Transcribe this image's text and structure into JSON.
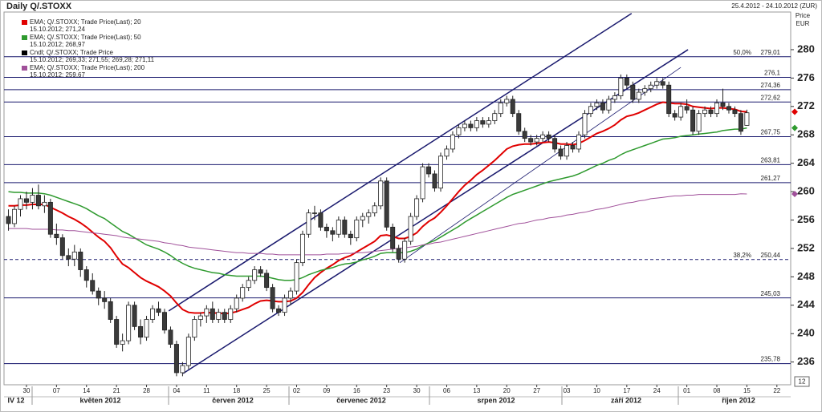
{
  "chart_data": {
    "type": "candlestick",
    "title": "Daily Q/.STOXX",
    "date_range": "25.4.2012 - 24.10.2012 (ZUR)",
    "y_label": [
      "Price",
      "EUR"
    ],
    "corner_label": "12",
    "ylim": [
      232.8,
      285.3
    ],
    "yticks": [
      236,
      240,
      244,
      248,
      252,
      256,
      260,
      264,
      268,
      272,
      276,
      280
    ],
    "xlim": [
      -0.74,
      130.3
    ],
    "xticks": [
      {
        "value": 3,
        "label": "30"
      },
      {
        "value": 8,
        "label": "07"
      },
      {
        "value": 13,
        "label": "14"
      },
      {
        "value": 18,
        "label": "21"
      },
      {
        "value": 23,
        "label": "28"
      },
      {
        "value": 28,
        "label": "04"
      },
      {
        "value": 33,
        "label": "11"
      },
      {
        "value": 38,
        "label": "18"
      },
      {
        "value": 43,
        "label": "25"
      },
      {
        "value": 48,
        "label": "02"
      },
      {
        "value": 53,
        "label": "09"
      },
      {
        "value": 58,
        "label": "16"
      },
      {
        "value": 63,
        "label": "23"
      },
      {
        "value": 68,
        "label": "30"
      },
      {
        "value": 73,
        "label": "06"
      },
      {
        "value": 78,
        "label": "13"
      },
      {
        "value": 83,
        "label": "20"
      },
      {
        "value": 88,
        "label": "27"
      },
      {
        "value": 93,
        "label": "03"
      },
      {
        "value": 98,
        "label": "10"
      },
      {
        "value": 103,
        "label": "17"
      },
      {
        "value": 108,
        "label": "24"
      },
      {
        "value": 113,
        "label": "01"
      },
      {
        "value": 118,
        "label": "08"
      },
      {
        "value": 123,
        "label": "15"
      },
      {
        "value": 128,
        "label": "22"
      }
    ],
    "months": [
      "IV 12",
      "květen 2012",
      "červen 2012",
      "červenec 2012",
      "srpen 2012",
      "září 2012",
      "říjen 2012"
    ],
    "legend": [
      {
        "name": "EMA; Q/.STOXX; Trade Price(Last);  20",
        "detail": "15.10.2012; 271,24",
        "color": "#e00000"
      },
      {
        "name": "EMA; Q/.STOXX; Trade Price(Last);  50",
        "detail": "15.10.2012; 268,97",
        "color": "#2e9a2e"
      },
      {
        "name": "Cndl; Q/.STOXX; Trade Price",
        "detail": "15.10.2012; 269,33; 271,55; 269,28; 271,11",
        "color": "#000000"
      },
      {
        "name": "EMA; Q/.STOXX; Trade Price(Last);  200",
        "detail": "15.10.2012; 259,67",
        "color": "#a0509a"
      }
    ],
    "up_color": "#ffffff",
    "down_color": "#3a3a3a",
    "ohlc": [
      [
        256.5,
        257.5,
        254.5,
        255.5
      ],
      [
        255.5,
        258,
        255,
        257.5
      ],
      [
        257.5,
        259.5,
        256.5,
        259
      ],
      [
        259,
        260,
        257.5,
        258.5
      ],
      [
        258.5,
        260.5,
        257.5,
        259.5
      ],
      [
        259.5,
        261,
        257.5,
        258
      ],
      [
        258,
        259.5,
        257,
        258.5
      ],
      [
        258.5,
        259,
        253.5,
        254
      ],
      [
        254,
        255.5,
        252.5,
        253.5
      ],
      [
        253.5,
        254,
        250.5,
        251
      ],
      [
        251,
        252,
        249.5,
        250.5
      ],
      [
        250.5,
        252.5,
        249.5,
        251.5
      ],
      [
        251.5,
        252,
        248,
        249
      ],
      [
        249,
        249.5,
        246.5,
        247.5
      ],
      [
        247.5,
        248.5,
        245.5,
        246
      ],
      [
        246,
        246.5,
        244,
        245
      ],
      [
        245,
        246,
        243.5,
        244.5
      ],
      [
        244.5,
        245,
        241.5,
        242
      ],
      [
        242,
        242.5,
        238,
        238.5
      ],
      [
        238.5,
        240,
        237.5,
        239
      ],
      [
        239,
        244.5,
        238.5,
        244
      ],
      [
        244,
        244.5,
        240.5,
        241
      ],
      [
        241,
        242,
        238.5,
        239.5
      ],
      [
        239.5,
        242.5,
        239,
        242
      ],
      [
        242,
        244,
        241.5,
        243.5
      ],
      [
        243.5,
        244.5,
        242.5,
        243
      ],
      [
        243,
        243.5,
        240,
        240.5
      ],
      [
        240.5,
        241,
        238,
        238.5
      ],
      [
        238.5,
        239,
        234,
        234.5
      ],
      [
        234.5,
        236,
        234,
        235.5
      ],
      [
        235.5,
        240,
        235,
        239.5
      ],
      [
        239.5,
        242.5,
        239,
        242
      ],
      [
        242,
        243,
        241,
        242.5
      ],
      [
        242.5,
        244,
        241.5,
        243.5
      ],
      [
        243.5,
        244.5,
        241.5,
        242
      ],
      [
        242,
        243.5,
        241.5,
        243
      ],
      [
        243,
        243.5,
        241.5,
        242
      ],
      [
        242,
        244,
        241.5,
        243.5
      ],
      [
        243.5,
        245.5,
        243,
        245
      ],
      [
        245,
        247,
        244.5,
        246.5
      ],
      [
        246.5,
        248,
        246,
        247.5
      ],
      [
        247.5,
        249.5,
        247,
        249
      ],
      [
        249,
        249.5,
        248,
        248.5
      ],
      [
        248.5,
        249,
        246,
        246.5
      ],
      [
        246.5,
        247,
        243,
        243.5
      ],
      [
        243.5,
        244,
        242.5,
        243
      ],
      [
        243,
        245.5,
        242.5,
        245
      ],
      [
        245,
        246.5,
        244,
        246
      ],
      [
        246,
        250.5,
        245.5,
        250
      ],
      [
        250,
        254.5,
        249.5,
        254
      ],
      [
        254,
        257.5,
        253.5,
        257
      ],
      [
        257,
        258,
        256,
        257
      ],
      [
        257,
        257.5,
        254.5,
        255
      ],
      [
        255,
        255.5,
        253.5,
        254.5
      ],
      [
        254.5,
        255,
        253,
        254
      ],
      [
        254,
        256.5,
        253.5,
        256
      ],
      [
        256,
        256.5,
        253.5,
        254
      ],
      [
        254,
        254.5,
        252.5,
        253.5
      ],
      [
        253.5,
        256.5,
        253,
        256
      ],
      [
        256,
        257,
        255,
        256.5
      ],
      [
        256.5,
        257.5,
        255.5,
        257
      ],
      [
        257,
        258.5,
        256.5,
        258
      ],
      [
        258,
        262,
        257.5,
        261.5
      ],
      [
        261.5,
        262,
        254.5,
        255
      ],
      [
        255,
        255.5,
        251.5,
        252
      ],
      [
        252,
        252.5,
        250,
        250.5
      ],
      [
        250.5,
        253.5,
        250,
        253
      ],
      [
        253,
        257,
        252.5,
        256.5
      ],
      [
        256.5,
        259.5,
        256,
        259
      ],
      [
        259,
        264,
        258.5,
        263.5
      ],
      [
        263.5,
        264,
        262,
        262.5
      ],
      [
        262.5,
        263,
        260,
        260.5
      ],
      [
        260.5,
        265.5,
        260,
        265
      ],
      [
        265,
        266.5,
        264.5,
        266
      ],
      [
        266,
        268.5,
        265.5,
        268
      ],
      [
        268,
        269.5,
        267.5,
        269
      ],
      [
        269,
        270,
        268.5,
        269.5
      ],
      [
        269.5,
        270,
        268.5,
        269
      ],
      [
        269,
        270.5,
        268.5,
        270
      ],
      [
        270,
        270.5,
        269,
        269.5
      ],
      [
        269.5,
        270.5,
        269,
        270
      ],
      [
        270,
        271.5,
        269.5,
        271
      ],
      [
        271,
        273,
        270.5,
        272.5
      ],
      [
        272.5,
        273.5,
        272,
        273
      ],
      [
        273,
        273.5,
        270.5,
        271
      ],
      [
        271,
        271.5,
        268,
        268.5
      ],
      [
        268.5,
        269,
        267,
        267.5
      ],
      [
        267.5,
        268,
        266.5,
        267
      ],
      [
        267,
        268,
        266.5,
        267.5
      ],
      [
        267.5,
        268.5,
        267,
        268
      ],
      [
        268,
        268.5,
        267,
        267.5
      ],
      [
        267.5,
        268,
        265.5,
        266
      ],
      [
        266,
        266.5,
        264.5,
        265
      ],
      [
        265,
        267,
        264.5,
        266.5
      ],
      [
        266.5,
        267,
        265.5,
        266
      ],
      [
        266,
        268.5,
        265.5,
        268
      ],
      [
        268,
        271.5,
        267.5,
        271
      ],
      [
        271,
        272.5,
        270.5,
        272
      ],
      [
        272,
        273,
        271.5,
        272.5
      ],
      [
        272.5,
        273,
        271,
        271.5
      ],
      [
        271.5,
        273.5,
        271,
        273
      ],
      [
        273,
        274,
        272.5,
        273.5
      ],
      [
        273.5,
        276.5,
        273,
        276
      ],
      [
        276,
        276.5,
        274.5,
        275
      ],
      [
        275,
        275.5,
        272.5,
        273
      ],
      [
        273,
        274.5,
        272.5,
        274
      ],
      [
        274,
        275,
        273.5,
        274.5
      ],
      [
        274.5,
        275.5,
        274,
        275
      ],
      [
        275,
        276,
        274.5,
        275.5
      ],
      [
        275.5,
        276,
        274.5,
        275
      ],
      [
        275,
        275.5,
        270.5,
        271
      ],
      [
        271,
        271.5,
        270,
        270.5
      ],
      [
        270.5,
        272.5,
        270,
        272
      ],
      [
        272,
        273,
        271,
        271.5
      ],
      [
        271.5,
        272,
        268,
        268.5
      ],
      [
        268.5,
        271.5,
        268,
        271
      ],
      [
        271,
        272,
        270.5,
        271.5
      ],
      [
        271.5,
        272,
        270.5,
        271
      ],
      [
        271,
        273,
        270.5,
        272.5
      ],
      [
        272.5,
        274.5,
        271.5,
        272
      ],
      [
        272,
        272.5,
        271,
        271.5
      ],
      [
        271.5,
        272,
        270.5,
        271
      ],
      [
        271,
        271.5,
        268,
        268.5
      ],
      [
        269.33,
        271.55,
        269.28,
        271.11
      ]
    ],
    "series": [
      {
        "color": "#e00000",
        "width": 2,
        "values": [
          258,
          258,
          258.1,
          258.1,
          258.2,
          258.2,
          258.2,
          257.8,
          257.4,
          257,
          256.5,
          256.1,
          255.6,
          255,
          254.3,
          253.6,
          253,
          252.1,
          250.9,
          249.8,
          249.3,
          248.6,
          247.9,
          247.4,
          247,
          246.6,
          246,
          245.3,
          244.3,
          243.4,
          243,
          242.9,
          242.9,
          243,
          242.9,
          242.9,
          242.8,
          242.9,
          243.1,
          243.4,
          243.7,
          244.2,
          244.6,
          244.7,
          244.6,
          244.5,
          244.5,
          244.6,
          245,
          245.8,
          246.9,
          247.9,
          248.6,
          249.2,
          249.7,
          250.3,
          250.7,
          251,
          251.5,
          252,
          252.5,
          253,
          253.8,
          253.9,
          253.7,
          253.4,
          253.4,
          253.7,
          254.2,
          255.1,
          255.8,
          256.3,
          257.1,
          258,
          259,
          260,
          260.9,
          261.6,
          262.4,
          263,
          263.7,
          264.4,
          265.2,
          266,
          266.4,
          266.6,
          266.7,
          266.7,
          266.8,
          266.9,
          267,
          266.9,
          266.7,
          266.7,
          266.6,
          266.8,
          267.2,
          267.7,
          268.2,
          268.5,
          268.9,
          269.4,
          270.1,
          270.6,
          270.8,
          271.1,
          271.5,
          271.9,
          272.3,
          272.6,
          272.5,
          272.4,
          272.4,
          272.3,
          272,
          271.9,
          271.8,
          271.7,
          271.8,
          271.8,
          271.7,
          271.6,
          271.3,
          271.24
        ]
      },
      {
        "color": "#2e9a2e",
        "width": 1.5,
        "values": [
          260,
          259.9,
          259.9,
          259.8,
          259.8,
          259.8,
          259.7,
          259.5,
          259.2,
          258.9,
          258.6,
          258.3,
          258,
          257.6,
          257.1,
          256.6,
          256.2,
          255.6,
          255,
          254.4,
          254,
          253.5,
          253,
          252.5,
          252.2,
          251.9,
          251.5,
          251,
          250.4,
          249.9,
          249.5,
          249.2,
          249,
          248.8,
          248.6,
          248.5,
          248.3,
          248.2,
          248.1,
          248.1,
          248.1,
          248.1,
          248.1,
          248,
          247.8,
          247.6,
          247.5,
          247.5,
          247.6,
          247.9,
          248.3,
          248.6,
          248.9,
          249.1,
          249.3,
          249.6,
          249.8,
          249.9,
          250.1,
          250.4,
          250.6,
          250.9,
          251.3,
          251.4,
          251.4,
          251.4,
          251.4,
          251.6,
          251.9,
          252.4,
          252.8,
          253.1,
          253.6,
          254.1,
          254.6,
          255.1,
          255.7,
          256.2,
          256.7,
          257.2,
          257.7,
          258.2,
          258.7,
          259.2,
          259.6,
          259.9,
          260.2,
          260.5,
          260.8,
          261.1,
          261.4,
          261.6,
          261.8,
          262,
          262.2,
          262.5,
          262.9,
          263.3,
          263.7,
          264,
          264.4,
          264.7,
          265.2,
          265.6,
          265.9,
          266.2,
          266.5,
          266.8,
          267.1,
          267.4,
          267.5,
          267.6,
          267.8,
          267.9,
          268,
          268.1,
          268.2,
          268.3,
          268.4,
          268.6,
          268.7,
          268.8,
          268.8,
          268.97
        ]
      },
      {
        "color": "#a0509a",
        "width": 1,
        "values": [
          254.8,
          254.8,
          254.8,
          254.8,
          254.7,
          254.7,
          254.7,
          254.7,
          254.6,
          254.6,
          254.5,
          254.5,
          254.4,
          254.3,
          254.2,
          254.1,
          254,
          253.9,
          253.8,
          253.6,
          253.5,
          253.4,
          253.3,
          253.2,
          253.1,
          253,
          252.8,
          252.7,
          252.5,
          252.4,
          252.2,
          252.1,
          252,
          251.9,
          251.8,
          251.7,
          251.6,
          251.5,
          251.4,
          251.4,
          251.3,
          251.3,
          251.3,
          251.2,
          251.2,
          251.1,
          251.1,
          251.1,
          251.1,
          251.1,
          251.1,
          251.1,
          251.1,
          251.2,
          251.2,
          251.2,
          251.3,
          251.3,
          251.4,
          251.4,
          251.5,
          251.6,
          251.7,
          251.8,
          251.9,
          252,
          252.1,
          252.2,
          252.3,
          252.5,
          252.6,
          252.8,
          252.9,
          253.1,
          253.3,
          253.5,
          253.7,
          253.9,
          254.1,
          254.3,
          254.5,
          254.7,
          254.9,
          255.1,
          255.3,
          255.5,
          255.6,
          255.8,
          256,
          256.1,
          256.3,
          256.4,
          256.5,
          256.7,
          256.8,
          257,
          257.1,
          257.3,
          257.5,
          257.6,
          257.8,
          258,
          258.2,
          258.4,
          258.5,
          258.7,
          258.8,
          259,
          259.1,
          259.2,
          259.3,
          259.4,
          259.4,
          259.5,
          259.5,
          259.6,
          259.6,
          259.6,
          259.6,
          259.6,
          259.6,
          259.6,
          259.7,
          259.67
        ]
      }
    ],
    "levels": [
      {
        "value": 279.01,
        "label": "279,01",
        "note": "50,0%"
      },
      {
        "value": 276.1,
        "label": "276,1"
      },
      {
        "value": 274.36,
        "label": "274,36"
      },
      {
        "value": 272.62,
        "label": "272,62"
      },
      {
        "value": 267.75,
        "label": "267,75"
      },
      {
        "value": 263.81,
        "label": "263,81"
      },
      {
        "value": 261.27,
        "label": "261,27"
      },
      {
        "value": 250.44,
        "label": "250,44",
        "note": "38,2%",
        "dashed": true
      },
      {
        "value": 245.03,
        "label": "245,03"
      },
      {
        "value": 235.78,
        "label": "235,78"
      }
    ],
    "level_color": "#1a1a6e",
    "trendlines": [
      {
        "x": [
          26.7,
          103.8
        ],
        "y": [
          243.2,
          285.1
        ],
        "width": 1.5
      },
      {
        "x": [
          29.1,
          113.2
        ],
        "y": [
          234.4,
          280
        ],
        "width": 1.5
      },
      {
        "x": [
          65.2,
          112
        ],
        "y": [
          250,
          277.5
        ],
        "width": 0.8
      }
    ]
  }
}
